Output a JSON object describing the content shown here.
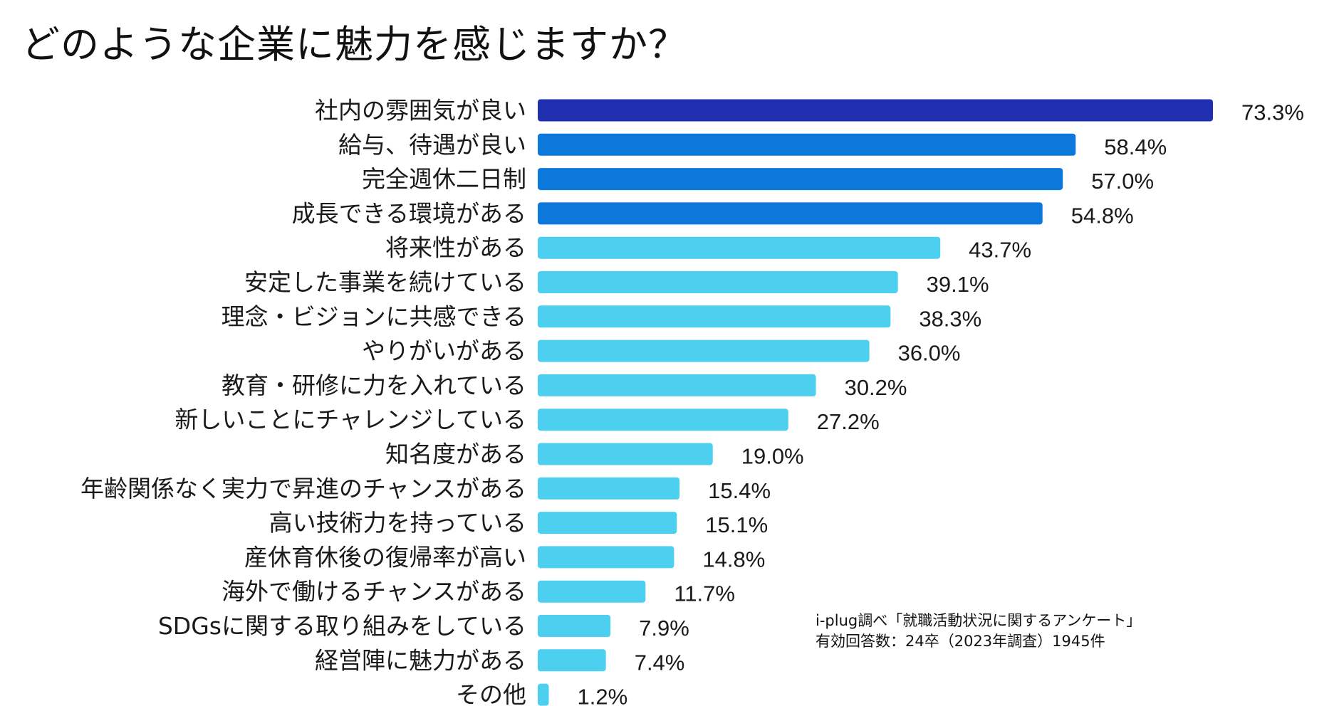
{
  "title": "どのような企業に魅力を感じますか？",
  "source": {
    "line1": "i-plug調べ「就職活動状況に関するアンケート」",
    "line2": "有効回答数：24卒（2023年調査）1945件"
  },
  "colors": {
    "top": "#1f2fb0",
    "high": "#0d78dc",
    "rest": "#4dd0f0"
  },
  "chart_data": {
    "type": "bar",
    "orientation": "horizontal",
    "categories": [
      "社内の雰囲気が良い",
      "給与、待遇が良い",
      "完全週休二日制",
      "成長できる環境がある",
      "将来性がある",
      "安定した事業を続けている",
      "理念・ビジョンに共感できる",
      "やりがいがある",
      "教育・研修に力を入れている",
      "新しいことにチャレンジしている",
      "知名度がある",
      "年齢関係なく実力で昇進のチャンスがある",
      "高い技術力を持っている",
      "産休育休後の復帰率が高い",
      "海外で働けるチャンスがある",
      "SDGsに関する取り組みをしている",
      "経営陣に魅力がある",
      "その他"
    ],
    "values": [
      73.3,
      58.4,
      57.0,
      54.8,
      43.7,
      39.1,
      38.3,
      36.0,
      30.2,
      27.2,
      19.0,
      15.4,
      15.1,
      14.8,
      11.7,
      7.9,
      7.4,
      1.2
    ],
    "value_labels": [
      "73.3%",
      "58.4%",
      "57.0%",
      "54.8%",
      "43.7%",
      "39.1%",
      "38.3%",
      "36.0%",
      "30.2%",
      "27.2%",
      "19.0%",
      "15.4%",
      "15.1%",
      "14.8%",
      "11.7%",
      "7.9%",
      "7.4%",
      "1.2%"
    ],
    "bar_color_groups": [
      "top",
      "high",
      "high",
      "high",
      "rest",
      "rest",
      "rest",
      "rest",
      "rest",
      "rest",
      "rest",
      "rest",
      "rest",
      "rest",
      "rest",
      "rest",
      "rest",
      "rest"
    ],
    "xlim": [
      0,
      73.3
    ],
    "grid": false,
    "legend": "none"
  }
}
